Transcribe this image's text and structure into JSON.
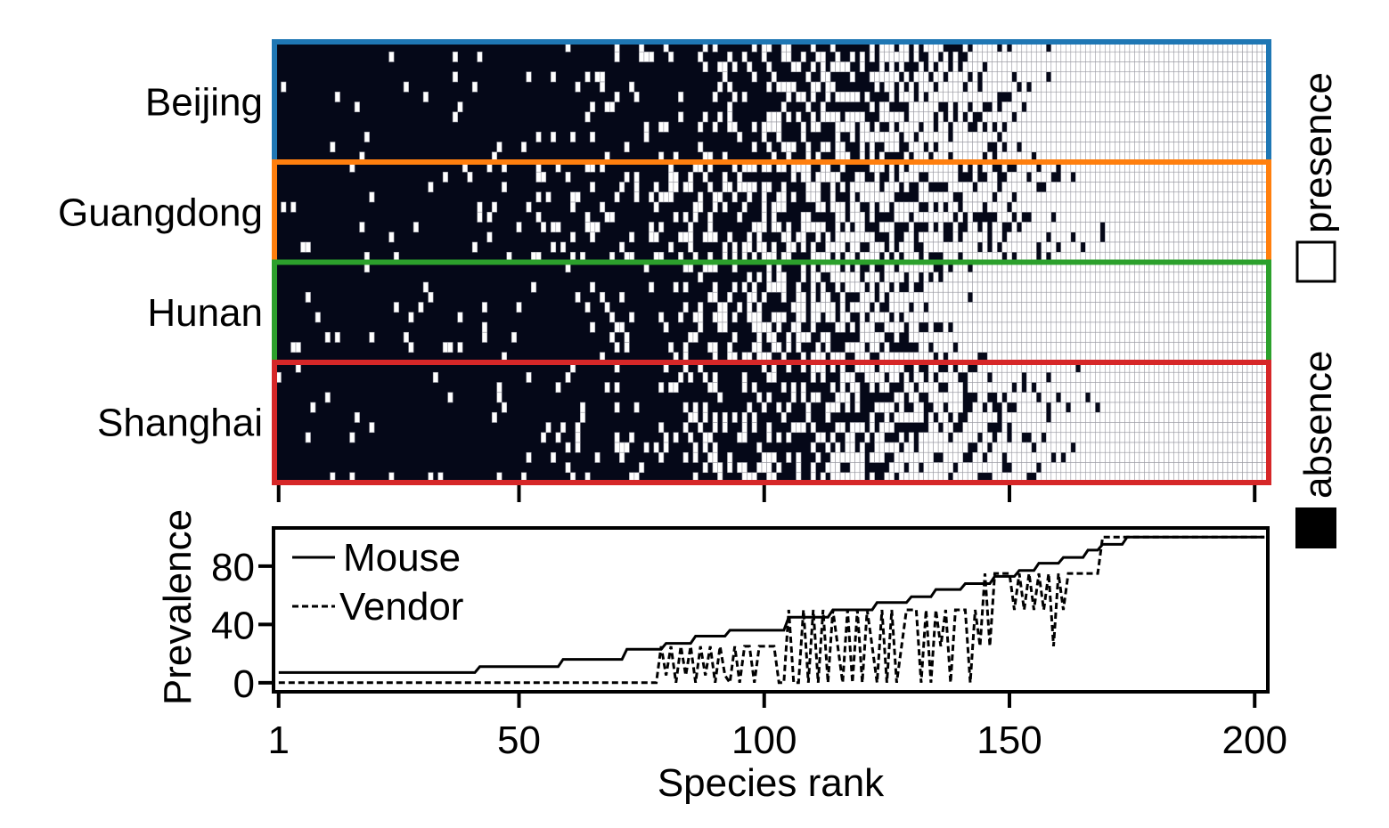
{
  "chart_data": [
    {
      "type": "heatmap",
      "title": "",
      "xlabel": "",
      "ylabel": "",
      "rows": [
        "Beijing",
        "Guangdong",
        "Hunan",
        "Shanghai"
      ],
      "row_colors": [
        "#1f77b4",
        "#ff7f0e",
        "#2ca02c",
        "#d62728"
      ],
      "samples_per_row": [
        12,
        10,
        10,
        12
      ],
      "n_species": 202,
      "x_ticks": [
        1,
        50,
        100,
        150,
        200
      ],
      "colors": {
        "absence": "#050818",
        "presence": "#ffffff"
      },
      "approx_presence_start_rank": {
        "Beijing": 93,
        "Guangdong": 76,
        "Hunan": 82,
        "Shanghai": 81
      },
      "approx_all_present_from_rank": {
        "Beijing": 160,
        "Guangdong": 170,
        "Hunan": 146,
        "Shanghai": 172
      }
    },
    {
      "type": "line",
      "xlabel": "Species rank",
      "ylabel": "Prevalence",
      "xlim": [
        1,
        202
      ],
      "ylim": [
        -5,
        105
      ],
      "x_ticks": [
        1,
        50,
        100,
        150,
        200
      ],
      "y_ticks": [
        0,
        40,
        80
      ],
      "legend_position": "top-left",
      "series": [
        {
          "name": "Mouse",
          "style": "solid",
          "x": [
            1,
            41,
            42,
            58,
            59,
            71,
            72,
            79,
            80,
            85,
            86,
            92,
            93,
            104,
            105,
            113,
            114,
            122,
            123,
            129,
            130,
            134,
            135,
            140,
            141,
            146,
            147,
            151,
            152,
            155,
            156,
            160,
            161,
            165,
            166,
            168,
            169,
            173,
            174,
            202
          ],
          "values": [
            7,
            7,
            11,
            11,
            16,
            16,
            23,
            23,
            27,
            27,
            32,
            32,
            36,
            36,
            45,
            45,
            50,
            50,
            55,
            55,
            59,
            59,
            64,
            64,
            68,
            68,
            73,
            73,
            77,
            77,
            82,
            82,
            86,
            86,
            91,
            91,
            95,
            95,
            100,
            100
          ]
        },
        {
          "name": "Vendor",
          "style": "dashed",
          "x": [
            1,
            78,
            79,
            80,
            81,
            82,
            83,
            84,
            85,
            86,
            87,
            88,
            89,
            90,
            91,
            92,
            93,
            94,
            95,
            96,
            97,
            98,
            99,
            100,
            101,
            102,
            103,
            104,
            105,
            106,
            107,
            108,
            109,
            110,
            111,
            112,
            113,
            114,
            115,
            116,
            117,
            118,
            119,
            120,
            121,
            122,
            123,
            124,
            125,
            126,
            127,
            128,
            129,
            130,
            131,
            132,
            133,
            134,
            135,
            136,
            137,
            138,
            139,
            140,
            141,
            142,
            143,
            144,
            145,
            146,
            147,
            148,
            149,
            150,
            151,
            152,
            153,
            154,
            155,
            156,
            157,
            158,
            159,
            160,
            161,
            162,
            163,
            164,
            165,
            166,
            167,
            168,
            169,
            170,
            171,
            172,
            173,
            202
          ],
          "values": [
            0,
            0,
            25,
            5,
            25,
            0,
            25,
            5,
            25,
            0,
            25,
            5,
            25,
            0,
            25,
            5,
            0,
            25,
            0,
            25,
            25,
            0,
            25,
            25,
            25,
            25,
            0,
            0,
            50,
            0,
            0,
            50,
            0,
            50,
            0,
            50,
            0,
            50,
            25,
            0,
            50,
            0,
            50,
            0,
            50,
            25,
            0,
            50,
            0,
            50,
            0,
            25,
            50,
            50,
            50,
            0,
            50,
            0,
            50,
            25,
            50,
            0,
            50,
            50,
            50,
            0,
            50,
            25,
            75,
            25,
            75,
            75,
            75,
            75,
            50,
            75,
            50,
            75,
            50,
            75,
            50,
            75,
            25,
            75,
            50,
            75,
            75,
            75,
            75,
            75,
            75,
            75,
            100,
            100,
            100,
            100,
            100,
            100
          ]
        }
      ]
    }
  ],
  "legend": {
    "presence_label": "presence",
    "absence_label": "absence"
  }
}
